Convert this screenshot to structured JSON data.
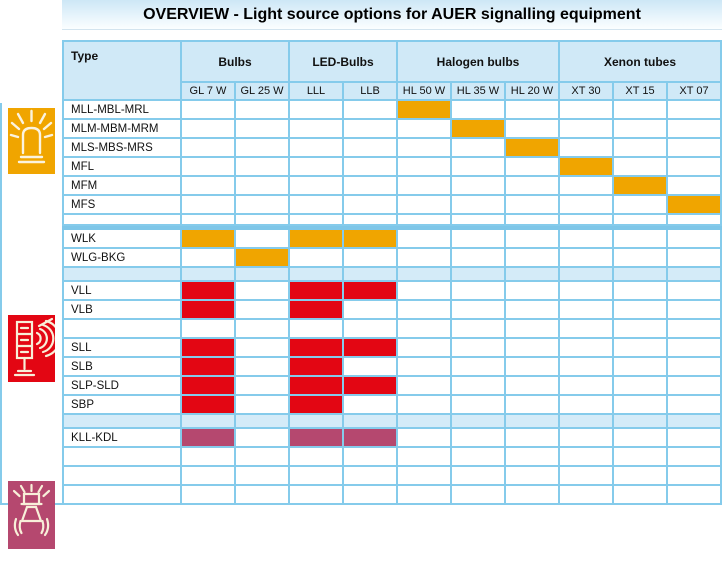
{
  "title": "OVERVIEW - Light source options for AUER signalling equipment",
  "colors": {
    "orange": "#F0A500",
    "red": "#E30613",
    "magenta": "#B5486F",
    "grid": "#85CBEB",
    "band": "#D4EBF8",
    "header_fill": "#D0E9F7",
    "glyph_cream": "#F8EFD9"
  },
  "icons": [
    {
      "name": "beacon-light-icon",
      "color_key": "orange"
    },
    {
      "name": "signal-tower-sounder-icon",
      "color_key": "red"
    },
    {
      "name": "bell-sounder-icon",
      "color_key": "magenta"
    }
  ],
  "table": {
    "type_header": "Type",
    "groups": [
      {
        "label": "Bulbs",
        "span": 2
      },
      {
        "label": "LED-Bulbs",
        "span": 2
      },
      {
        "label": "Halogen bulbs",
        "span": 3
      },
      {
        "label": "Xenon tubes",
        "span": 3
      }
    ],
    "columns": [
      "GL 7 W",
      "GL 25 W",
      "LLL",
      "LLB",
      "HL 50 W",
      "HL 35 W",
      "HL 20 W",
      "XT 30",
      "XT 15",
      "XT 07"
    ],
    "rows": [
      {
        "label": "MLL-MBL-MRL",
        "color": "orange",
        "marks": [
          4
        ]
      },
      {
        "label": "MLM-MBM-MRM",
        "color": "orange",
        "marks": [
          5
        ]
      },
      {
        "label": "MLS-MBS-MRS",
        "color": "orange",
        "marks": [
          6
        ]
      },
      {
        "label": "MFL",
        "color": "orange",
        "marks": [
          7
        ]
      },
      {
        "label": "MFM",
        "color": "orange",
        "marks": [
          8
        ]
      },
      {
        "label": "MFS",
        "color": "orange",
        "marks": [
          9
        ]
      },
      {
        "label": "",
        "short": true,
        "marks": []
      },
      {
        "type": "sep"
      },
      {
        "label": "WLK",
        "color": "orange",
        "marks": [
          0,
          2,
          3
        ]
      },
      {
        "label": "WLG-BKG",
        "color": "orange",
        "marks": [
          1
        ]
      },
      {
        "type": "band"
      },
      {
        "label": "VLL",
        "color": "red",
        "marks": [
          0,
          2,
          3
        ]
      },
      {
        "label": "VLB",
        "color": "red",
        "marks": [
          0,
          2
        ]
      },
      {
        "label": "",
        "marks": []
      },
      {
        "label": "SLL",
        "color": "red",
        "marks": [
          0,
          2,
          3
        ]
      },
      {
        "label": "SLB",
        "color": "red",
        "marks": [
          0,
          2
        ]
      },
      {
        "label": "SLP-SLD",
        "color": "red",
        "marks": [
          0,
          2,
          3
        ]
      },
      {
        "label": "SBP",
        "color": "red",
        "marks": [
          0,
          2
        ]
      },
      {
        "type": "band"
      },
      {
        "label": "KLL-KDL",
        "color": "magenta",
        "marks": [
          0,
          2,
          3
        ]
      },
      {
        "label": "",
        "marks": []
      },
      {
        "label": "",
        "marks": []
      },
      {
        "label": "",
        "marks": []
      }
    ]
  }
}
